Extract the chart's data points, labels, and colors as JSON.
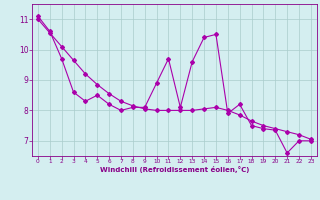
{
  "xlabel": "Windchill (Refroidissement éolien,°C)",
  "x_values": [
    0,
    1,
    2,
    3,
    4,
    5,
    6,
    7,
    8,
    9,
    10,
    11,
    12,
    13,
    14,
    15,
    16,
    17,
    18,
    19,
    20,
    21,
    22,
    23
  ],
  "y_data": [
    11.1,
    10.6,
    9.7,
    8.6,
    8.3,
    8.5,
    8.2,
    8.0,
    8.1,
    8.1,
    8.9,
    9.7,
    8.1,
    9.6,
    10.4,
    10.5,
    7.9,
    8.2,
    7.5,
    7.4,
    7.35,
    6.6,
    7.0,
    7.0
  ],
  "y_trend": [
    11.0,
    10.55,
    10.1,
    9.65,
    9.2,
    8.85,
    8.55,
    8.3,
    8.15,
    8.05,
    8.0,
    8.0,
    8.0,
    8.0,
    8.05,
    8.1,
    8.0,
    7.85,
    7.65,
    7.5,
    7.4,
    7.3,
    7.2,
    7.05
  ],
  "line_color": "#aa00aa",
  "bg_color": "#d4eef0",
  "grid_color": "#aacccc",
  "text_color": "#880088",
  "ylim": [
    6.5,
    11.5
  ],
  "xlim": [
    -0.5,
    23.5
  ],
  "yticks": [
    7,
    8,
    9,
    10,
    11
  ],
  "xticks": [
    0,
    1,
    2,
    3,
    4,
    5,
    6,
    7,
    8,
    9,
    10,
    11,
    12,
    13,
    14,
    15,
    16,
    17,
    18,
    19,
    20,
    21,
    22,
    23
  ]
}
